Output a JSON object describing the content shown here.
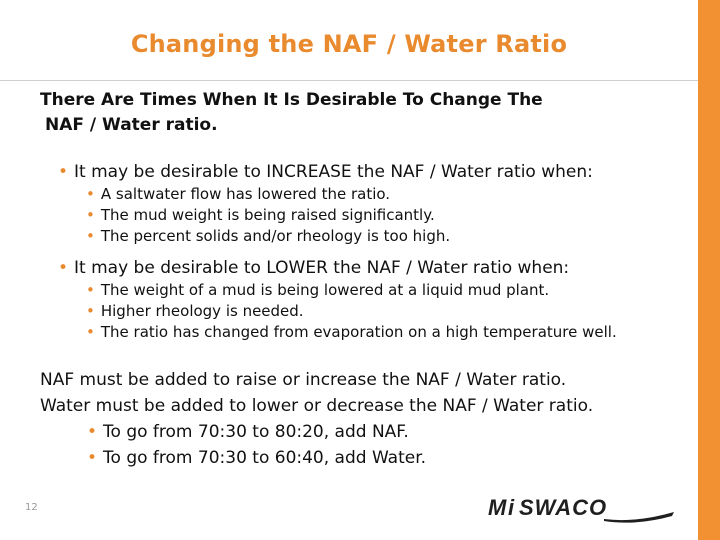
{
  "slide": {
    "title": "Changing the NAF / Water Ratio",
    "intro_line1": "There Are Times When It Is Desirable To Change The",
    "intro_line2": "NAF / Water ratio.",
    "groups": [
      {
        "heading": "It may be desirable to INCREASE the NAF / Water ratio when:",
        "items": [
          "A saltwater flow has lowered the ratio.",
          "The mud weight is being raised significantly.",
          "The percent solids and/or rheology is too high."
        ]
      },
      {
        "heading": "It may be desirable to LOWER the NAF / Water ratio when:",
        "items": [
          "The weight of a mud is being lowered at a liquid mud plant.",
          "Higher rheology is needed.",
          "The ratio has changed from evaporation on a high temperature well."
        ]
      }
    ],
    "closing_line1": "NAF must be added to raise or increase the NAF / Water ratio.",
    "closing_line2": "Water must be added to lower or decrease the NAF / Water ratio.",
    "closing_items": [
      "To go from 70:30 to 80:20, add NAF.",
      "To go from 70:30 to 60:40, add Water."
    ],
    "page_number": "12",
    "logo_text": "MI SWACO"
  },
  "colors": {
    "accent": "#e98a2e",
    "side_bar": "#f29131",
    "text": "#111111",
    "logo": "#1f1f1f"
  }
}
